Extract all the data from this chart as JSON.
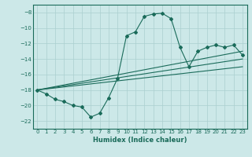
{
  "xlabel": "Humidex (Indice chaleur)",
  "bg_color": "#cce8e8",
  "grid_color_major": "#aacfcf",
  "grid_color_minor": "#bbdada",
  "line_color": "#1a6b5a",
  "xlim": [
    -0.5,
    23.5
  ],
  "ylim": [
    -23.0,
    -7.0
  ],
  "yticks": [
    -22,
    -20,
    -18,
    -16,
    -14,
    -12,
    -10,
    -8
  ],
  "xticks": [
    0,
    1,
    2,
    3,
    4,
    5,
    6,
    7,
    8,
    9,
    10,
    11,
    12,
    13,
    14,
    15,
    16,
    17,
    18,
    19,
    20,
    21,
    22,
    23
  ],
  "curve_x": [
    0,
    1,
    2,
    3,
    4,
    5,
    6,
    7,
    8,
    9,
    10,
    11,
    12,
    13,
    14,
    15,
    16,
    17,
    18,
    19,
    20,
    21,
    22,
    23
  ],
  "curve_y": [
    -18.0,
    -18.5,
    -19.2,
    -19.5,
    -20.0,
    -20.2,
    -21.5,
    -21.0,
    -19.0,
    -16.5,
    -11.0,
    -10.5,
    -8.5,
    -8.2,
    -8.1,
    -8.8,
    -12.5,
    -15.0,
    -13.0,
    -12.5,
    -12.2,
    -12.5,
    -12.2,
    -13.5
  ],
  "line1_x": [
    0,
    23
  ],
  "line1_y": [
    -18.0,
    -13.0
  ],
  "line2_x": [
    0,
    23
  ],
  "line2_y": [
    -18.0,
    -14.0
  ],
  "line3_x": [
    0,
    23
  ],
  "line3_y": [
    -18.0,
    -15.0
  ]
}
